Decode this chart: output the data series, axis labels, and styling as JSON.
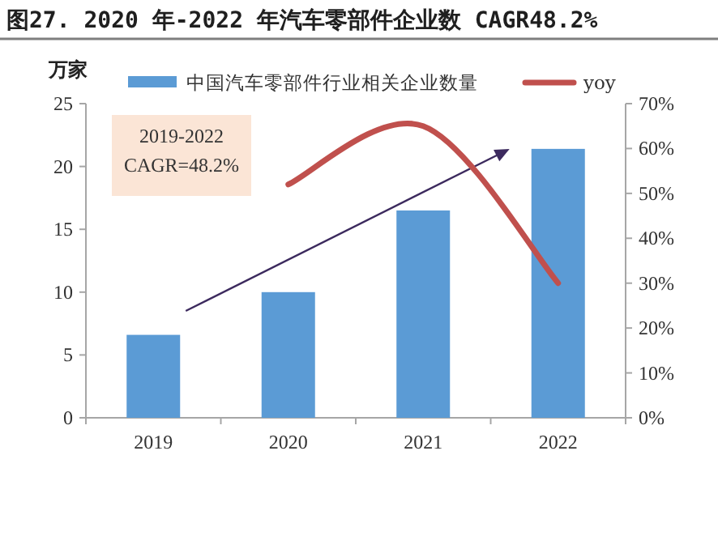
{
  "chart_data": {
    "type": "bar",
    "title": "图27. 2020 年-2022 年汽车零部件企业数 CAGR48.2%",
    "ylabel": "万家",
    "categories": [
      "2019",
      "2020",
      "2021",
      "2022"
    ],
    "series": [
      {
        "name": "中国汽车零部件行业相关企业数量",
        "color": "#5b9bd5",
        "values": [
          6.6,
          10.0,
          16.5,
          21.4
        ]
      },
      {
        "name": "yoy",
        "type": "line",
        "axis": "y2",
        "color": "#c0504d",
        "values": [
          null,
          52,
          65,
          30
        ]
      }
    ],
    "ylim": [
      0,
      25
    ],
    "yticks": [
      0,
      5,
      10,
      15,
      20,
      25
    ],
    "y2lim": [
      0,
      70
    ],
    "y2ticks": [
      {
        "value": 0,
        "label": "0%"
      },
      {
        "value": 10,
        "label": "10%"
      },
      {
        "value": 20,
        "label": "20%"
      },
      {
        "value": 30,
        "label": "30%"
      },
      {
        "value": 40,
        "label": "40%"
      },
      {
        "value": 50,
        "label": "50%"
      },
      {
        "value": 60,
        "label": "60%"
      },
      {
        "value": 70,
        "label": "70%"
      }
    ],
    "legend": "top",
    "annotations": [
      "2019-2022",
      "CAGR=48.2%"
    ]
  }
}
